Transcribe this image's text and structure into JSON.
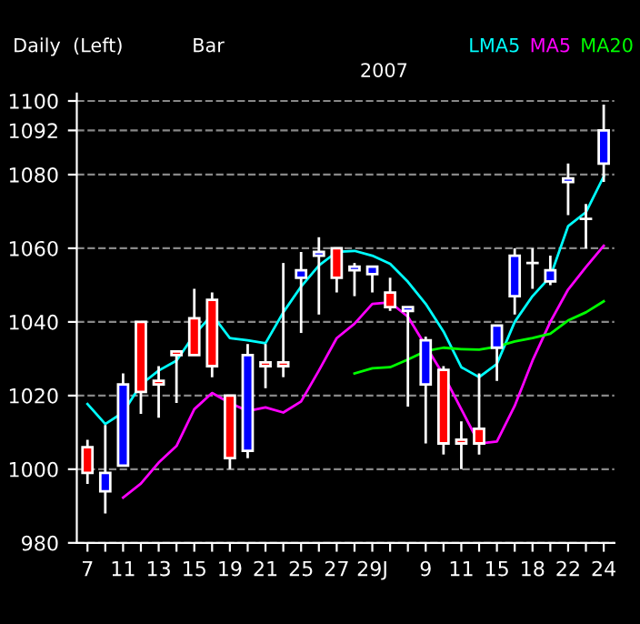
{
  "chart_data": {
    "type": "candlestick",
    "title": "Daily  (Left)",
    "subtitle": "2007",
    "annotations": [
      "Bar"
    ],
    "categories": [
      "7",
      null,
      "11",
      null,
      "13",
      null,
      "15",
      null,
      "19",
      null,
      "21",
      null,
      "25",
      null,
      "27",
      null,
      "29J",
      null,
      null,
      "9",
      null,
      "11",
      null,
      "15",
      null,
      "18",
      null,
      "22",
      null,
      "24"
    ],
    "ohlc": [
      [
        1006,
        1008,
        996,
        999
      ],
      [
        994,
        1012,
        988,
        999
      ],
      [
        1001,
        1026,
        1001,
        1023
      ],
      [
        1040,
        1040,
        1015,
        1021
      ],
      [
        1024,
        1028,
        1014,
        1023
      ],
      [
        1032,
        1032,
        1018,
        1031
      ],
      [
        1041,
        1049,
        1031,
        1031
      ],
      [
        1046,
        1048,
        1025,
        1028
      ],
      [
        1020,
        1020,
        1000,
        1003
      ],
      [
        1005,
        1034,
        1003,
        1031
      ],
      [
        1029,
        1034,
        1022,
        1028
      ],
      [
        1029,
        1056,
        1025,
        1028
      ],
      [
        1052,
        1059,
        1037,
        1054
      ],
      [
        1058,
        1063,
        1042,
        1059
      ],
      [
        1060,
        1060,
        1048,
        1052
      ],
      [
        1054,
        1056,
        1047,
        1055
      ],
      [
        1053,
        1055,
        1048,
        1055
      ],
      [
        1048,
        1052,
        1043,
        1044
      ],
      [
        1043,
        1044,
        1017,
        1044
      ],
      [
        1023,
        1036,
        1007,
        1035
      ],
      [
        1027,
        1028,
        1004,
        1007
      ],
      [
        1008,
        1013,
        1000,
        1007
      ],
      [
        1011,
        1026,
        1004,
        1007
      ],
      [
        1033,
        1039,
        1024,
        1039
      ],
      [
        1047,
        1060,
        1042,
        1058
      ],
      [
        1056,
        1060,
        1049,
        1056
      ],
      [
        1051,
        1058,
        1050,
        1054
      ],
      [
        1078,
        1083,
        1069,
        1079
      ],
      [
        1068,
        1072,
        1060,
        1068
      ],
      [
        1083,
        1099,
        1078,
        1092
      ]
    ],
    "colors": [
      "#ff0000",
      "#0000ff",
      "#0000ff",
      "#ff0000",
      "#ff0000",
      "#ff0000",
      "#ff0000",
      "#ff0000",
      "#ff0000",
      "#0000ff",
      "#ff0000",
      "#ff0000",
      "#0000ff",
      "#0000ff",
      "#ff0000",
      "#0000ff",
      "#0000ff",
      "#ff0000",
      "#0000ff",
      "#0000ff",
      "#ff0000",
      "#ff0000",
      "#ff0000",
      "#0000ff",
      "#0000ff",
      "#ffffff",
      "#0000ff",
      "#0000ff",
      "#ffffff",
      "#0000ff"
    ],
    "series": [
      {
        "name": "LMA5",
        "type": "line",
        "color": "#00ffff",
        "values": [
          1017.7,
          1012.3,
          1015.4,
          1023,
          1026.8,
          1029.5,
          1036.5,
          1042,
          1035.6,
          1035,
          1034.2,
          1042.6,
          1049.6,
          1055.3,
          1059,
          1059.3,
          1058,
          1055.8,
          1050.9,
          1044.9,
          1037.4,
          1027.7,
          1025,
          1028.6,
          1040,
          1047,
          1052.3,
          1066,
          1069.8,
          1079.5
        ]
      },
      {
        "name": "MA5",
        "type": "line",
        "color": "#ff00ff",
        "values": [
          null,
          null,
          992.3,
          996.1,
          1001.8,
          1006.3,
          1016.3,
          1020.7,
          1018,
          1015.8,
          1016.8,
          1015.4,
          1018.4,
          1026.8,
          1035.6,
          1039.5,
          1044.9,
          1045.3,
          1041.4,
          null,
          1025.6,
          1016.3,
          1007,
          1007.5,
          1017.2,
          1029.5,
          1040,
          1048.8,
          1054.9,
          1060.7
        ]
      },
      {
        "name": "MA20",
        "type": "line",
        "color": "#00ff00",
        "values": [
          null,
          null,
          null,
          null,
          null,
          null,
          null,
          null,
          null,
          null,
          null,
          null,
          null,
          null,
          null,
          1026,
          1027.4,
          1027.7,
          1029.8,
          1032.1,
          1033,
          1032.6,
          1032.5,
          1033.3,
          1034.7,
          1035.6,
          1036.8,
          1040.4,
          1042.6,
          1045.6
        ]
      }
    ],
    "ylim": [
      980,
      1102
    ],
    "yticks": [
      980,
      1000,
      1020,
      1040,
      1060,
      1080,
      1092,
      1100
    ],
    "grid": "y",
    "line_style": "solid"
  }
}
